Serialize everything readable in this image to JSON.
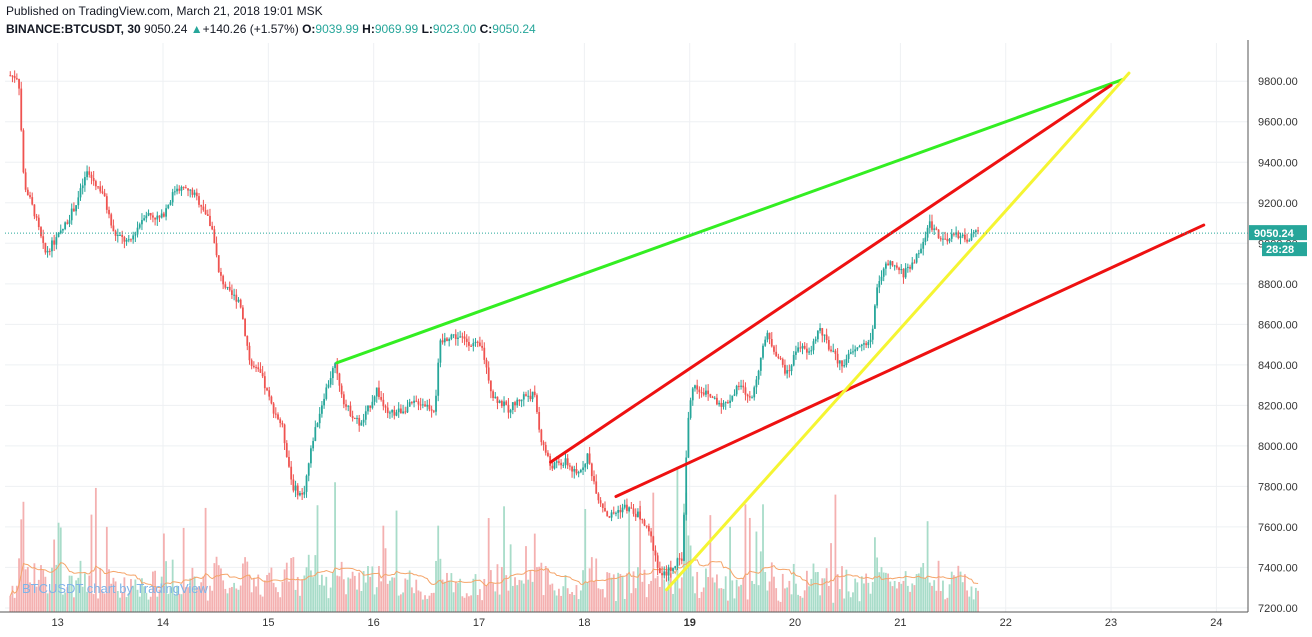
{
  "header": {
    "published": "Published on TradingView.com, March 21, 2018 19:01 MSK",
    "symbol": "BINANCE:BTCUSDT, 30",
    "last": "9050.24",
    "change_arrow": "▲",
    "change": "+140.26 (+1.57%)",
    "o_label": "O:",
    "o_value": "9039.99",
    "h_label": "H:",
    "h_value": "9069.99",
    "l_label": "L:",
    "l_value": "9023.00",
    "c_label": "C:",
    "c_value": "9050.24"
  },
  "watermark": "BTCUSDT chart by TradingView",
  "price_label": "9050.24",
  "countdown_label": "28:28",
  "colors": {
    "up": "#26a69a",
    "down": "#ef5350",
    "up_volume": "#a8dcc9",
    "down_volume": "#f4b0b0",
    "green_line": "#33ee22",
    "red_line": "#ee1111",
    "yellow_line": "#f5f532",
    "ma_line": "#f5a56a",
    "price_line": "#26a69a"
  },
  "chart_data": {
    "type": "candlestick",
    "x_axis": {
      "type": "date",
      "tick_labels": [
        "13",
        "14",
        "15",
        "16",
        "17",
        "18",
        "19",
        "20",
        "21",
        "22",
        "23",
        "24"
      ],
      "range_days": [
        12.5,
        24.3
      ]
    },
    "y_axis": {
      "position": "right",
      "tick_labels": [
        "7200.00",
        "7400.00",
        "7600.00",
        "7800.00",
        "8000.00",
        "8200.00",
        "8400.00",
        "8600.00",
        "8800.00",
        "9000.00",
        "9200.00",
        "9400.00",
        "9600.00",
        "9800.00"
      ],
      "range": [
        7180,
        9890
      ]
    },
    "grid": true,
    "price_path": [
      [
        12.55,
        9830
      ],
      [
        12.65,
        9820
      ],
      [
        12.7,
        9300
      ],
      [
        12.8,
        9150
      ],
      [
        12.9,
        8950
      ],
      [
        13.05,
        9050
      ],
      [
        13.2,
        9200
      ],
      [
        13.3,
        9350
      ],
      [
        13.45,
        9250
      ],
      [
        13.55,
        9050
      ],
      [
        13.7,
        9000
      ],
      [
        13.85,
        9150
      ],
      [
        14.0,
        9120
      ],
      [
        14.15,
        9280
      ],
      [
        14.3,
        9250
      ],
      [
        14.4,
        9180
      ],
      [
        14.5,
        9050
      ],
      [
        14.55,
        8850
      ],
      [
        14.65,
        8750
      ],
      [
        14.75,
        8720
      ],
      [
        14.85,
        8400
      ],
      [
        14.95,
        8350
      ],
      [
        15.05,
        8200
      ],
      [
        15.15,
        8100
      ],
      [
        15.25,
        7800
      ],
      [
        15.35,
        7750
      ],
      [
        15.45,
        8050
      ],
      [
        15.55,
        8250
      ],
      [
        15.65,
        8400
      ],
      [
        15.75,
        8200
      ],
      [
        15.9,
        8100
      ],
      [
        16.05,
        8280
      ],
      [
        16.15,
        8150
      ],
      [
        16.3,
        8180
      ],
      [
        16.45,
        8220
      ],
      [
        16.6,
        8180
      ],
      [
        16.65,
        8500
      ],
      [
        16.75,
        8550
      ],
      [
        16.9,
        8520
      ],
      [
        17.05,
        8480
      ],
      [
        17.15,
        8250
      ],
      [
        17.3,
        8180
      ],
      [
        17.45,
        8250
      ],
      [
        17.55,
        8250
      ],
      [
        17.6,
        8050
      ],
      [
        17.7,
        7900
      ],
      [
        17.85,
        7920
      ],
      [
        17.95,
        7850
      ],
      [
        18.05,
        7950
      ],
      [
        18.15,
        7750
      ],
      [
        18.25,
        7650
      ],
      [
        18.4,
        7700
      ],
      [
        18.55,
        7650
      ],
      [
        18.65,
        7550
      ],
      [
        18.75,
        7350
      ],
      [
        18.85,
        7400
      ],
      [
        18.95,
        7450
      ],
      [
        19.0,
        8100
      ],
      [
        19.05,
        8300
      ],
      [
        19.2,
        8250
      ],
      [
        19.35,
        8200
      ],
      [
        19.5,
        8300
      ],
      [
        19.6,
        8220
      ],
      [
        19.75,
        8550
      ],
      [
        19.85,
        8450
      ],
      [
        19.95,
        8350
      ],
      [
        20.05,
        8500
      ],
      [
        20.15,
        8450
      ],
      [
        20.25,
        8580
      ],
      [
        20.35,
        8480
      ],
      [
        20.45,
        8400
      ],
      [
        20.55,
        8450
      ],
      [
        20.65,
        8500
      ],
      [
        20.75,
        8520
      ],
      [
        20.8,
        8800
      ],
      [
        20.9,
        8900
      ],
      [
        21.05,
        8850
      ],
      [
        21.2,
        8950
      ],
      [
        21.3,
        9100
      ],
      [
        21.45,
        9000
      ],
      [
        21.55,
        9050
      ],
      [
        21.65,
        9020
      ],
      [
        21.75,
        9050
      ]
    ],
    "trendlines": [
      {
        "color": "green_line",
        "from": [
          15.65,
          8410
        ],
        "to": [
          23.12,
          9810
        ]
      },
      {
        "color": "red_line",
        "from": [
          17.68,
          7920
        ],
        "to": [
          23.0,
          9780
        ]
      },
      {
        "color": "red_line",
        "from": [
          18.3,
          7750
        ],
        "to": [
          23.88,
          9090
        ]
      },
      {
        "color": "yellow_line",
        "from": [
          18.78,
          7290
        ],
        "to": [
          23.17,
          9840
        ]
      }
    ]
  }
}
